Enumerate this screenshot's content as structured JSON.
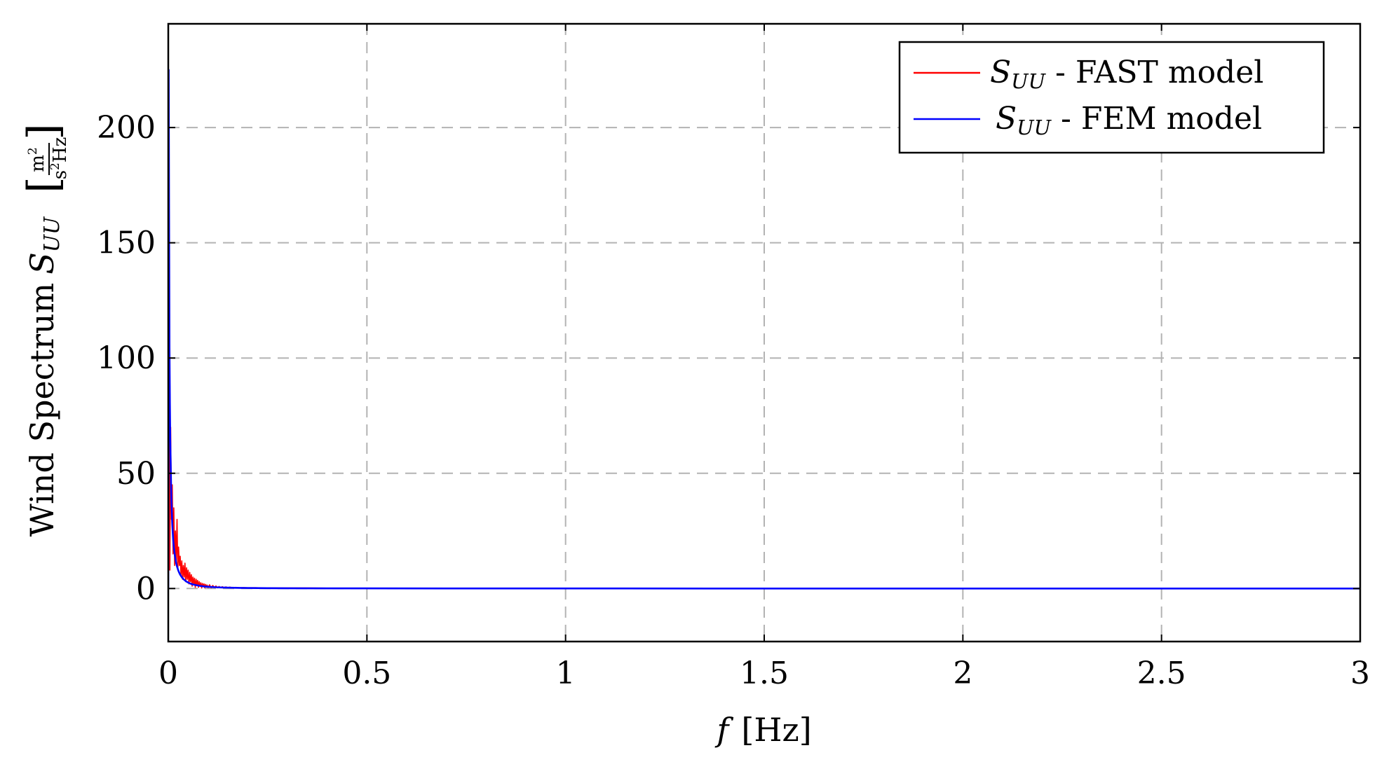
{
  "chart_data": {
    "type": "line",
    "xlabel": {
      "var": "f",
      "unit": "[Hz]"
    },
    "ylabel": {
      "text": "Wind Spectrum",
      "var": "S",
      "sub": "UU",
      "unit_num": "m",
      "unit_num_exp": "2",
      "unit_den": "s",
      "unit_den_exp": "2",
      "unit_den_rest": "Hz"
    },
    "xlim": [
      0,
      3
    ],
    "ylim": [
      -23,
      245
    ],
    "xticks": [
      0,
      0.5,
      1,
      1.5,
      2,
      2.5,
      3
    ],
    "xtick_labels": [
      "0",
      "0.5",
      "1",
      "1.5",
      "2",
      "2.5",
      "3"
    ],
    "yticks": [
      0,
      50,
      100,
      150,
      200
    ],
    "ytick_labels": [
      "0",
      "50",
      "100",
      "150",
      "200"
    ],
    "grid": true,
    "legend_position": "top-right",
    "series": [
      {
        "name": "S_UU - FAST model",
        "legend_var": "S",
        "legend_sub": "UU",
        "legend_text": " - FAST model",
        "color": "#ff0000",
        "x": [
          0.0,
          0.002,
          0.004,
          0.006,
          0.008,
          0.01,
          0.012,
          0.014,
          0.016,
          0.018,
          0.02,
          0.022,
          0.024,
          0.026,
          0.028,
          0.03,
          0.032,
          0.034,
          0.036,
          0.038,
          0.04,
          0.042,
          0.044,
          0.046,
          0.048,
          0.05,
          0.052,
          0.054,
          0.056,
          0.058,
          0.06,
          0.062,
          0.064,
          0.066,
          0.068,
          0.07,
          0.072,
          0.074,
          0.076,
          0.078,
          0.08,
          0.082,
          0.084,
          0.086,
          0.088,
          0.09,
          0.092,
          0.094,
          0.096,
          0.098,
          0.1,
          0.104,
          0.108,
          0.112,
          0.116,
          0.12,
          0.124,
          0.128,
          0.132,
          0.136,
          0.14,
          0.145,
          0.15,
          0.155,
          0.16,
          0.17,
          0.18,
          0.19,
          0.2,
          0.22,
          0.24,
          0.26,
          0.28,
          0.3,
          0.35,
          0.4,
          0.45,
          0.5,
          0.6,
          0.8,
          1.0,
          1.2,
          1.5,
          1.8,
          2.0
        ],
        "y": [
          0.0,
          120.0,
          8.0,
          70.0,
          30.0,
          45.0,
          15.0,
          35.0,
          10.0,
          25.0,
          12.0,
          30.0,
          8.0,
          18.0,
          10.0,
          14.0,
          6.0,
          12.0,
          4.0,
          10.0,
          5.0,
          11.0,
          3.0,
          9.0,
          4.0,
          8.0,
          2.0,
          7.0,
          3.0,
          6.0,
          1.0,
          5.0,
          2.0,
          4.5,
          0.5,
          4.0,
          1.5,
          3.5,
          0.5,
          3.0,
          1.0,
          2.5,
          0.2,
          2.2,
          0.8,
          2.0,
          0.3,
          1.8,
          0.6,
          1.5,
          0.4,
          1.6,
          0.3,
          1.3,
          0.4,
          1.1,
          0.3,
          0.9,
          0.3,
          0.8,
          0.3,
          0.7,
          0.3,
          0.6,
          0.3,
          0.5,
          0.3,
          0.4,
          0.3,
          0.35,
          0.25,
          0.3,
          0.2,
          0.25,
          0.2,
          0.15,
          0.15,
          0.12,
          0.1,
          0.08,
          0.06,
          0.05,
          0.04,
          0.03,
          0.02
        ]
      },
      {
        "name": "S_UU - FEM model",
        "legend_var": "S",
        "legend_sub": "UU",
        "legend_text": " - FEM model",
        "color": "#0000ff",
        "x": [
          0.0,
          0.001,
          0.002,
          0.003,
          0.004,
          0.005,
          0.006,
          0.007,
          0.008,
          0.009,
          0.01,
          0.012,
          0.014,
          0.016,
          0.018,
          0.02,
          0.022,
          0.024,
          0.026,
          0.028,
          0.03,
          0.033,
          0.036,
          0.04,
          0.045,
          0.05,
          0.055,
          0.06,
          0.07,
          0.08,
          0.09,
          0.1,
          0.12,
          0.14,
          0.16,
          0.18,
          0.2,
          0.25,
          0.3,
          0.4,
          0.5,
          0.7,
          1.0,
          1.5,
          2.0,
          2.5,
          3.0
        ],
        "y": [
          0.0,
          225.0,
          165.0,
          105.0,
          80.0,
          65.0,
          55.0,
          45.0,
          38.0,
          33.0,
          28.0,
          22.0,
          18.0,
          15.0,
          13.0,
          11.0,
          9.5,
          8.5,
          7.5,
          6.7,
          6.0,
          5.2,
          4.5,
          3.8,
          3.1,
          2.6,
          2.2,
          1.9,
          1.45,
          1.15,
          0.92,
          0.76,
          0.55,
          0.42,
          0.33,
          0.27,
          0.22,
          0.15,
          0.11,
          0.07,
          0.05,
          0.03,
          0.02,
          0.01,
          0.005,
          0.003,
          0.002
        ]
      }
    ]
  }
}
